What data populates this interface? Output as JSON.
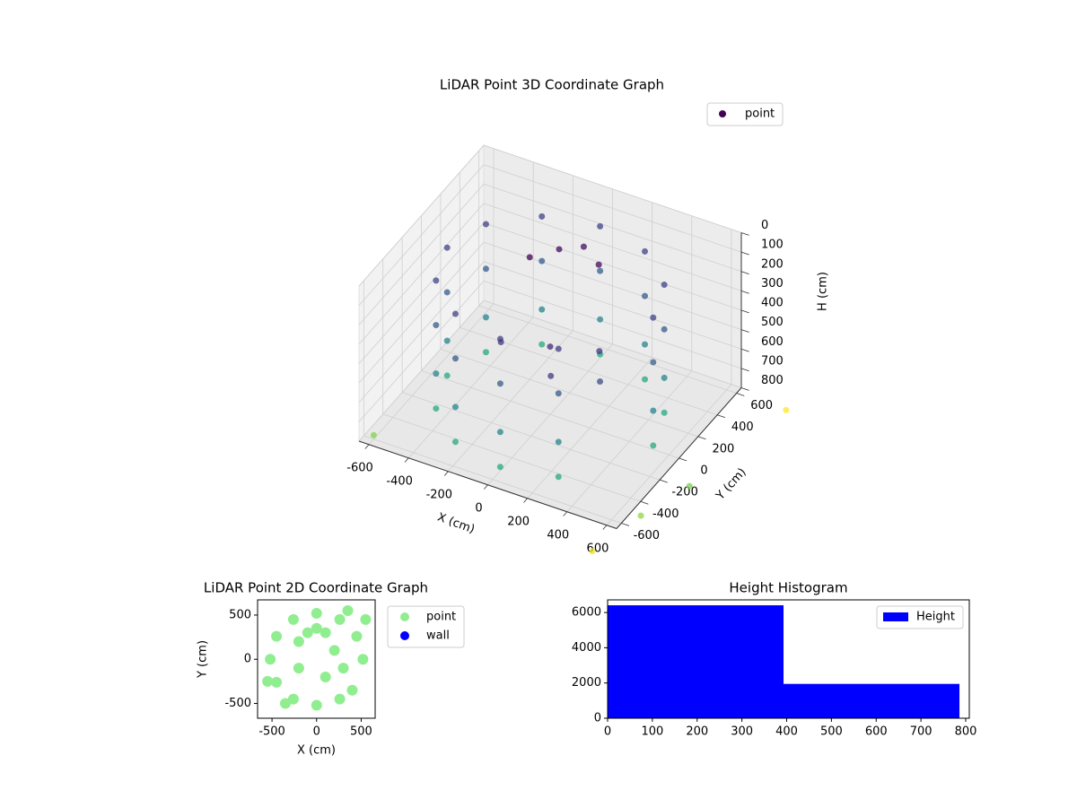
{
  "chart_data": [
    {
      "type": "scatter3d",
      "title": "LiDAR Point 3D Coordinate Graph",
      "x_label": "X (cm)",
      "y_label": "Y (cm)",
      "z_label": "H (cm)",
      "xlim": [
        -650,
        650
      ],
      "ylim": [
        -650,
        650
      ],
      "zlim": [
        800,
        0
      ],
      "xticks": [
        -600,
        -400,
        -200,
        0,
        200,
        400,
        600
      ],
      "yticks": [
        -600,
        -400,
        -200,
        0,
        200,
        400,
        600
      ],
      "zticks": [
        0,
        100,
        200,
        300,
        400,
        500,
        600,
        700,
        800
      ],
      "colormap": "viridis",
      "legend": "upper right",
      "grid": true,
      "series": [
        {
          "name": "point",
          "color": "#440154",
          "x": [
            520,
            520,
            520,
            520,
            450,
            450,
            450,
            450,
            260,
            260,
            260,
            260,
            0,
            0,
            0,
            0,
            -260,
            -260,
            -260,
            -260,
            -450,
            -450,
            -450,
            -450,
            -520,
            -520,
            -520,
            -520,
            -450,
            -450,
            -450,
            -450,
            -260,
            -260,
            -260,
            -260,
            0,
            0,
            0,
            0,
            260,
            260,
            260,
            260,
            -100,
            0,
            100,
            -200,
            0,
            200,
            -200,
            300,
            100,
            -600,
            700,
            600,
            900,
            800
          ],
          "y": [
            0,
            0,
            0,
            0,
            260,
            260,
            260,
            260,
            450,
            450,
            450,
            450,
            520,
            520,
            520,
            520,
            450,
            450,
            450,
            450,
            260,
            260,
            260,
            260,
            0,
            0,
            0,
            0,
            -260,
            -260,
            -260,
            -260,
            -450,
            -450,
            -450,
            -450,
            -520,
            -520,
            -520,
            -520,
            -450,
            -450,
            -450,
            -450,
            300,
            350,
            300,
            200,
            0,
            100,
            -100,
            -100,
            -200,
            -600,
            -500,
            -800,
            600,
            -200
          ],
          "values": [
            120,
            350,
            600,
            780,
            120,
            350,
            600,
            780,
            120,
            350,
            600,
            780,
            120,
            350,
            600,
            780,
            120,
            350,
            600,
            780,
            120,
            350,
            600,
            780,
            120,
            350,
            600,
            780,
            120,
            350,
            600,
            780,
            120,
            350,
            600,
            780,
            120,
            350,
            600,
            780,
            120,
            350,
            600,
            780,
            150,
            130,
            160,
            170,
            450,
            460,
            440,
            470,
            455,
            780,
            800,
            850,
            800,
            780
          ]
        }
      ]
    },
    {
      "type": "scatter",
      "title": "LiDAR Point 2D Coordinate Graph",
      "x_label": "X (cm)",
      "y_label": "Y (cm)",
      "xlim": [
        -662,
        657
      ],
      "ylim": [
        -667,
        672
      ],
      "xticks": [
        -500,
        0,
        500
      ],
      "yticks": [
        -500,
        0,
        500
      ],
      "legend": "outside right",
      "series": [
        {
          "name": "point",
          "color": "#90ee90",
          "x": [
            520,
            450,
            260,
            0,
            -260,
            -450,
            -520,
            -450,
            -260,
            0,
            260,
            -100,
            0,
            100,
            -200,
            200,
            -200,
            300,
            100,
            400,
            -550,
            550,
            -350,
            350
          ],
          "values": [
            0,
            260,
            450,
            520,
            450,
            260,
            0,
            -260,
            -450,
            -520,
            -450,
            300,
            350,
            300,
            200,
            100,
            -100,
            -100,
            -200,
            -350,
            -250,
            450,
            -500,
            550
          ]
        },
        {
          "name": "wall",
          "color": "#0000ff",
          "x": [],
          "values": []
        }
      ]
    },
    {
      "type": "histogram",
      "title": "Height Histogram",
      "bins": [
        0,
        393,
        786
      ],
      "values": [
        6410,
        1949
      ],
      "color": "#0000ff",
      "series_name": "Height",
      "xlim": [
        0,
        808
      ],
      "ylim": [
        0,
        6718
      ],
      "xticks": [
        0,
        100,
        200,
        300,
        400,
        500,
        600,
        700,
        800
      ],
      "yticks": [
        0,
        2000,
        4000,
        6000
      ],
      "legend": "upper right"
    }
  ]
}
